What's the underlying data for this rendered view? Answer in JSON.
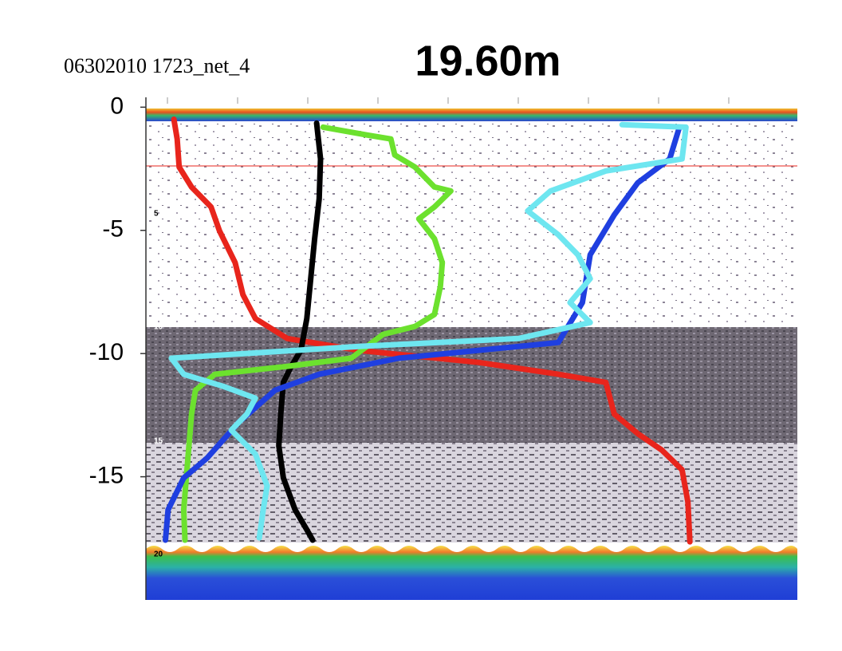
{
  "chart_data": {
    "type": "line",
    "title": "19.60m",
    "subtitle": "06302010 1723_net_4",
    "xlim": [
      0,
      100
    ],
    "ylim": [
      -20,
      0.4
    ],
    "yticks": [
      0,
      -5,
      -10,
      -15
    ],
    "depth_labels": [
      "5",
      "10",
      "15",
      "20"
    ],
    "series": [
      {
        "color": "#e8251c",
        "x": [
          4.3,
          4.8,
          5.1,
          7.0,
          10.0,
          11.3,
          13.7,
          14.9,
          16.8,
          21.7,
          32.7,
          51.1,
          63.3,
          70.6,
          71.9,
          75.6,
          79.2,
          82.3,
          83.2,
          83.5
        ],
        "values": [
          -0.49,
          -1.29,
          -2.43,
          -3.24,
          -4.05,
          -5.02,
          -6.31,
          -7.61,
          -8.58,
          -9.39,
          -9.87,
          -10.36,
          -10.84,
          -11.17,
          -12.46,
          -13.27,
          -13.92,
          -14.72,
          -16.02,
          -17.64
        ]
      },
      {
        "color": "#000000",
        "x": [
          26.2,
          26.8,
          26.6,
          25.9,
          25.3,
          24.7,
          23.8,
          22.3,
          21.1,
          20.7,
          20.4,
          21.1,
          22.9,
          24.7,
          25.6
        ],
        "values": [
          -0.65,
          -2.1,
          -3.72,
          -5.34,
          -6.96,
          -8.58,
          -9.87,
          -10.52,
          -11.17,
          -12.46,
          -13.75,
          -15.05,
          -16.34,
          -17.15,
          -17.57
        ]
      },
      {
        "color": "#6ce12e",
        "x": [
          27.2,
          33.9,
          37.6,
          38.2,
          41.3,
          44.3,
          46.8,
          44.3,
          41.9,
          44.3,
          45.5,
          45.2,
          44.3,
          41.3,
          36.4,
          31.5,
          21.7,
          10.6,
          7.6,
          7.0,
          6.4,
          5.8,
          6.0
        ],
        "values": [
          -0.81,
          -1.13,
          -1.29,
          -1.94,
          -2.43,
          -3.24,
          -3.4,
          -4.05,
          -4.53,
          -5.34,
          -6.31,
          -7.28,
          -8.41,
          -8.9,
          -9.22,
          -10.19,
          -10.52,
          -10.84,
          -11.49,
          -12.46,
          -14.4,
          -16.34,
          -17.57
        ]
      },
      {
        "color": "#1f3fe0",
        "x": [
          81.9,
          80.4,
          75.5,
          71.9,
          68.2,
          67.0,
          63.3,
          38.8,
          26.6,
          19.8,
          14.3,
          9.4,
          5.8,
          3.4,
          3.0
        ],
        "values": [
          -0.81,
          -2.1,
          -3.07,
          -4.37,
          -5.99,
          -7.93,
          -9.55,
          -10.19,
          -10.84,
          -11.49,
          -12.78,
          -14.24,
          -15.05,
          -16.34,
          -17.57
        ]
      },
      {
        "color": "#6ee6f0",
        "x": [
          73.1,
          82.9,
          82.3,
          70.6,
          62.1,
          58.6,
          63.3,
          66.3,
          68.2,
          65.1,
          68.2,
          57.2,
          32.7,
          3.9,
          5.8,
          11.9,
          16.8,
          15.5,
          13.1,
          16.8,
          18.6,
          18.0,
          17.4
        ],
        "values": [
          -0.71,
          -0.81,
          -2.1,
          -2.59,
          -3.4,
          -4.21,
          -5.18,
          -5.99,
          -6.96,
          -7.93,
          -8.74,
          -9.39,
          -9.71,
          -10.19,
          -10.84,
          -11.33,
          -11.81,
          -12.46,
          -13.11,
          -14.08,
          -15.37,
          -16.34,
          -17.48
        ]
      }
    ]
  }
}
